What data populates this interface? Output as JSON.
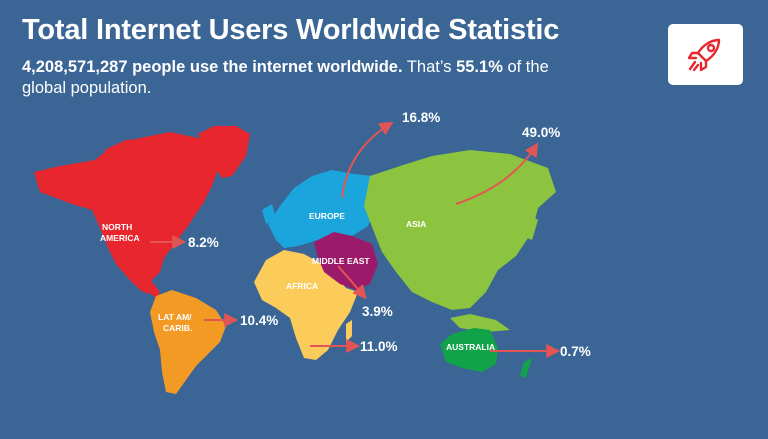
{
  "header": {
    "title": "Total Internet Users Worldwide Statistic",
    "subtitle_bold_1": "4,208,571,287 people use the internet worldwide.",
    "subtitle_text_1": " That’s ",
    "subtitle_bold_2": "55.1%",
    "subtitle_text_2": " of the global population."
  },
  "logo": {
    "icon": "rocket-icon"
  },
  "regions": {
    "north_america": {
      "label_line1": "NORTH",
      "label_line2": "AMERICA",
      "percent": "8.2%",
      "color": "#e8262e"
    },
    "latam": {
      "label_line1": "LAT AM/",
      "label_line2": "CARIB.",
      "percent": "10.4%",
      "color": "#f39a25"
    },
    "europe": {
      "label": "EUROPE",
      "percent": "16.8%",
      "color": "#1aa6dc"
    },
    "africa": {
      "label": "AFRICA",
      "percent": "11.0%",
      "color": "#fccc5a"
    },
    "middle_east": {
      "label": "MIDDLE EAST",
      "percent": "3.9%",
      "color": "#9b1b6a"
    },
    "asia": {
      "label": "ASIA",
      "percent": "49.0%",
      "color": "#8cc43f"
    },
    "australia": {
      "label": "AUSTRALIA",
      "percent": "0.7%",
      "color": "#11a24a"
    }
  },
  "arrow_color": "#e25555"
}
